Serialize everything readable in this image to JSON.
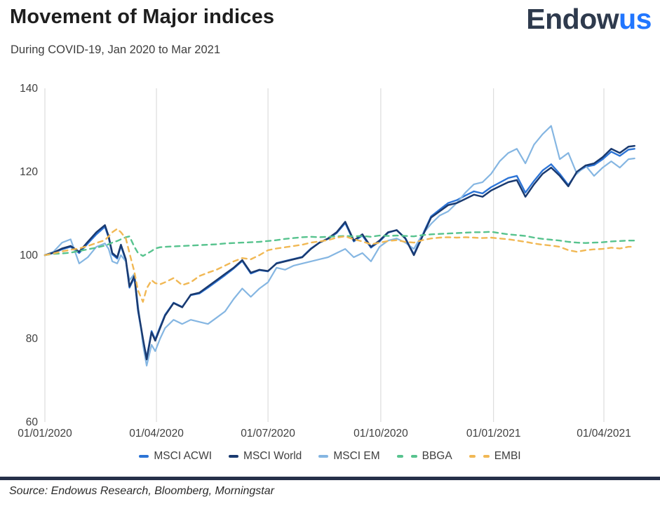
{
  "header": {
    "title": "Movement of Major indices",
    "subtitle": "During COVID-19,  Jan 2020 to Mar 2021"
  },
  "logo": {
    "part1": "Endow",
    "part2": "us"
  },
  "footer": {
    "source": "Source: Endowus Research, Bloomberg, Morningstar"
  },
  "colors": {
    "msci_acwi": "#2c74d6",
    "msci_world": "#1a3a70",
    "msci_em": "#85b6e2",
    "bbga": "#57c38e",
    "embi": "#f1b854",
    "gridline": "#d6d6d6",
    "axis_label": "#3f3f3f",
    "footer_rule": "#253049",
    "logo_dark": "#2e3a4d",
    "logo_blue": "#2176ff"
  },
  "chart_data": {
    "type": "line",
    "title": "Movement of Major indices",
    "subtitle": "During COVID-19, Jan 2020 to Mar 2021",
    "xlabel": "",
    "ylabel": "",
    "ylim": [
      60,
      140
    ],
    "y_ticks": [
      60,
      80,
      100,
      120,
      140
    ],
    "x_unit": "days since 01/01/2020",
    "x_ticks": [
      {
        "day": 0,
        "label": "01/01/2020"
      },
      {
        "day": 91,
        "label": "01/04/2020"
      },
      {
        "day": 182,
        "label": "01/07/2020"
      },
      {
        "day": 274,
        "label": "01/10/2020"
      },
      {
        "day": 366,
        "label": "01/01/2021"
      },
      {
        "day": 456,
        "label": "01/04/2021"
      }
    ],
    "grid": "vertical-only",
    "legend_position": "bottom",
    "x": [
      0,
      7,
      14,
      21,
      28,
      35,
      42,
      49,
      52,
      55,
      59,
      62,
      66,
      69,
      73,
      76,
      80,
      83,
      87,
      90,
      94,
      98,
      105,
      112,
      119,
      126,
      133,
      140,
      147,
      154,
      161,
      168,
      175,
      182,
      189,
      196,
      203,
      210,
      217,
      224,
      231,
      238,
      245,
      252,
      259,
      266,
      273,
      280,
      287,
      294,
      301,
      308,
      315,
      322,
      329,
      336,
      343,
      350,
      357,
      364,
      371,
      378,
      385,
      392,
      399,
      406,
      413,
      420,
      427,
      434,
      441,
      448,
      455,
      462,
      469,
      476,
      481
    ],
    "series": [
      {
        "name": "MSCI ACWI",
        "color": "#2c74d6",
        "style": "solid",
        "width": 2.4,
        "values": [
          100,
          100.5,
          101.4,
          102.0,
          100.5,
          102.8,
          105.0,
          106.8,
          104.2,
          100.2,
          99.2,
          102.2,
          98.7,
          92.2,
          94.6,
          86.6,
          79.7,
          75.4,
          81.8,
          79.8,
          82.8,
          85.7,
          88.6,
          87.6,
          90.4,
          90.8,
          92.2,
          93.7,
          95.2,
          96.8,
          98.6,
          95.6,
          96.4,
          96.1,
          98.1,
          98.6,
          99.1,
          99.6,
          101.6,
          103.0,
          103.9,
          105.3,
          107.7,
          103.3,
          104.7,
          101.8,
          103.3,
          105.4,
          106.0,
          104.1,
          100.2,
          104.8,
          109.3,
          110.9,
          112.5,
          113.2,
          114.3,
          115.3,
          114.8,
          116.3,
          117.4,
          118.5,
          119.0,
          115.0,
          117.8,
          120.3,
          121.8,
          119.5,
          116.8,
          119.8,
          121.2,
          121.6,
          123.0,
          124.8,
          123.8,
          125.3,
          125.5
        ]
      },
      {
        "name": "MSCI World",
        "color": "#1a3a70",
        "style": "solid",
        "width": 2.5,
        "values": [
          100,
          100.6,
          101.6,
          102.2,
          100.8,
          103.2,
          105.5,
          107.2,
          104.5,
          100.5,
          99.5,
          102.5,
          99.0,
          92.5,
          95.0,
          87.0,
          80.0,
          75.0,
          81.5,
          79.5,
          82.5,
          85.5,
          88.5,
          87.5,
          90.5,
          91.0,
          92.5,
          94.0,
          95.5,
          97.0,
          98.8,
          95.8,
          96.5,
          96.2,
          98.0,
          98.5,
          99.0,
          99.5,
          101.5,
          103.0,
          104.0,
          105.5,
          108.0,
          103.5,
          105.0,
          102.0,
          103.5,
          105.5,
          106.0,
          104.0,
          100.0,
          104.5,
          109.0,
          110.5,
          112.0,
          112.5,
          113.5,
          114.5,
          114.0,
          115.5,
          116.5,
          117.5,
          118.0,
          114.0,
          117.0,
          119.5,
          121.0,
          119.0,
          116.5,
          120.0,
          121.5,
          122.0,
          123.5,
          125.5,
          124.5,
          126.0,
          126.2
        ]
      },
      {
        "name": "MSCI EM",
        "color": "#85b6e2",
        "style": "solid",
        "width": 2.2,
        "values": [
          100,
          100.8,
          103.0,
          103.8,
          98.0,
          99.5,
          102.0,
          102.8,
          101.5,
          98.5,
          98.0,
          100.0,
          98.5,
          94.0,
          95.5,
          88.0,
          78.5,
          73.5,
          78.5,
          77.0,
          80.0,
          82.5,
          84.5,
          83.5,
          84.5,
          84.0,
          83.5,
          85.0,
          86.5,
          89.5,
          92.0,
          90.0,
          92.0,
          93.5,
          97.0,
          96.5,
          97.5,
          98.0,
          98.5,
          99.0,
          99.5,
          100.5,
          101.5,
          99.5,
          100.5,
          98.5,
          102.0,
          103.5,
          104.0,
          103.0,
          101.5,
          105.0,
          107.5,
          109.5,
          110.5,
          112.5,
          115.0,
          117.0,
          117.5,
          119.5,
          122.5,
          124.5,
          125.5,
          122.0,
          126.5,
          129.0,
          131.0,
          123.0,
          124.5,
          119.5,
          121.5,
          119.0,
          121.0,
          122.5,
          121.0,
          123.0,
          123.2
        ]
      },
      {
        "name": "BBGA",
        "color": "#57c38e",
        "style": "dashed",
        "width": 2.4,
        "values": [
          100,
          100.3,
          100.4,
          100.6,
          101.0,
          101.4,
          101.8,
          102.3,
          102.6,
          103.0,
          103.4,
          103.8,
          104.3,
          104.5,
          102.0,
          100.5,
          99.8,
          100.3,
          101.0,
          101.6,
          101.9,
          102.0,
          102.1,
          102.2,
          102.3,
          102.4,
          102.5,
          102.6,
          102.8,
          102.9,
          103.0,
          103.1,
          103.2,
          103.4,
          103.6,
          103.9,
          104.1,
          104.3,
          104.4,
          104.3,
          104.4,
          104.5,
          104.6,
          104.5,
          104.6,
          104.4,
          104.7,
          104.6,
          104.7,
          104.6,
          104.5,
          104.8,
          105.0,
          105.1,
          105.2,
          105.3,
          105.4,
          105.5,
          105.5,
          105.6,
          105.3,
          105.0,
          104.8,
          104.6,
          104.2,
          103.9,
          103.7,
          103.5,
          103.2,
          103.0,
          102.9,
          103.0,
          103.1,
          103.3,
          103.4,
          103.5,
          103.5
        ]
      },
      {
        "name": "EMBI",
        "color": "#f1b854",
        "style": "dashed",
        "width": 2.4,
        "values": [
          100,
          100.4,
          100.9,
          101.3,
          101.6,
          102.2,
          102.9,
          103.6,
          104.5,
          105.5,
          106.3,
          105.5,
          104.0,
          100.5,
          96.0,
          91.5,
          88.8,
          92.0,
          94.0,
          93.3,
          93.0,
          93.5,
          94.5,
          92.8,
          93.5,
          95.0,
          95.8,
          96.5,
          97.5,
          98.5,
          99.3,
          99.0,
          100.0,
          101.2,
          101.6,
          101.9,
          102.2,
          102.5,
          103.0,
          103.3,
          103.6,
          104.2,
          104.5,
          103.8,
          103.3,
          102.6,
          103.0,
          103.4,
          103.6,
          103.2,
          103.0,
          103.6,
          104.0,
          104.2,
          104.3,
          104.2,
          104.3,
          104.2,
          104.1,
          104.2,
          104.0,
          103.8,
          103.5,
          103.2,
          102.8,
          102.5,
          102.3,
          102.0,
          101.2,
          100.8,
          101.2,
          101.4,
          101.5,
          101.8,
          101.6,
          102.0,
          102.0
        ]
      }
    ]
  }
}
